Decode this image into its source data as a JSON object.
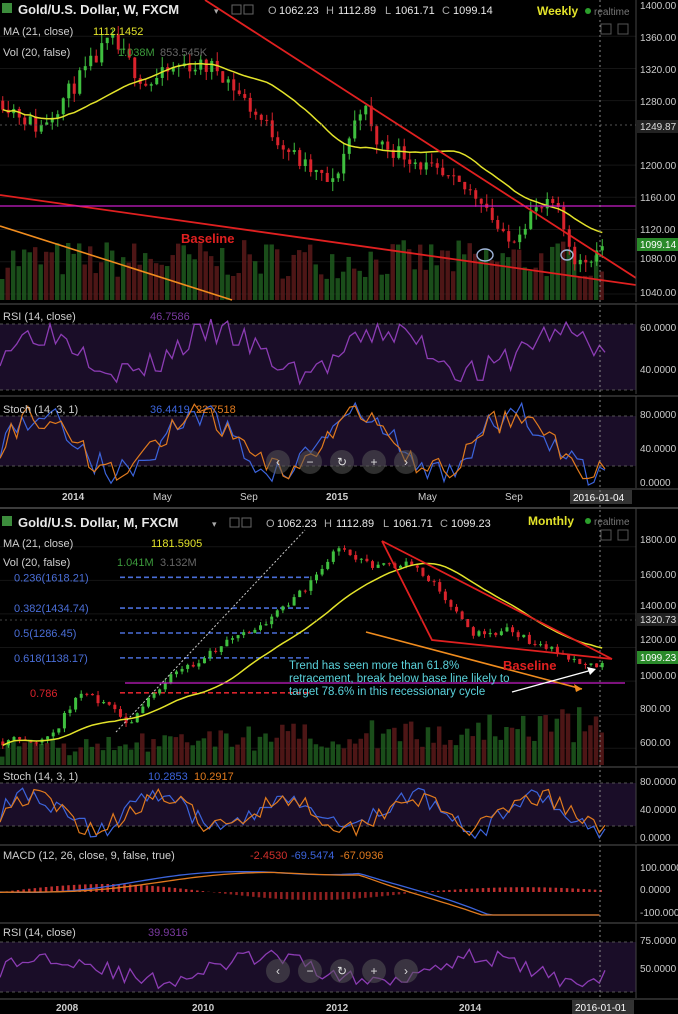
{
  "weekly": {
    "title": "Gold/U.S. Dollar, W, FXCM",
    "ohlc": {
      "o_label": "O",
      "o": "1062.23",
      "h_label": "H",
      "h": "1112.89",
      "l_label": "L",
      "l": "1061.71",
      "c_label": "C",
      "c": "1099.14"
    },
    "timeframe_label": "Weekly",
    "realtime_label": "realtime",
    "ma_label": "MA (21, close)",
    "ma_value": "1112.1452",
    "vol_label": "Vol (20, false)",
    "vol_values": [
      "1.038M",
      "853.545K"
    ],
    "rsi_label": "RSI (14, close)",
    "rsi_value": "46.7586",
    "stoch_label": "Stoch (14, 3, 1)",
    "stoch_values": [
      "36.4419",
      "22.7518"
    ],
    "baseline_label": "Baseline",
    "price_ticks": [
      "1400.00",
      "1360.00",
      "1320.00",
      "1280.00",
      "1249.87",
      "1200.00",
      "1160.00",
      "1120.00",
      "1099.14",
      "1080.00",
      "1040.00"
    ],
    "rsi_ticks": [
      "60.0000",
      "40.0000"
    ],
    "stoch_ticks": [
      "80.0000",
      "40.0000",
      "0.0000"
    ],
    "time_labels": [
      "2014",
      "May",
      "Sep",
      "2015",
      "May",
      "Sep"
    ],
    "date_badge": "2016-01-04"
  },
  "monthly": {
    "title": "Gold/U.S. Dollar, M, FXCM",
    "ohlc": {
      "o_label": "O",
      "o": "1062.23",
      "h_label": "H",
      "h": "1112.89",
      "l_label": "L",
      "l": "1061.71",
      "c_label": "C",
      "c": "1099.23"
    },
    "timeframe_label": "Monthly",
    "realtime_label": "realtime",
    "ma_label": "MA (21, close)",
    "ma_value": "1181.5905",
    "vol_label": "Vol (20, false)",
    "vol_values": [
      "1.041M",
      "3.132M"
    ],
    "fib_levels": [
      "0.236(1618.21)",
      "0.382(1434.74)",
      "0.5(1286.45)",
      "0.618(1138.17)",
      "0.786"
    ],
    "annotation_lines": [
      "Trend has seen more than 61.8%",
      "retracement, break below base line likely to",
      "target 78.6% in this recessionary cycle"
    ],
    "baseline_label": "Baseline",
    "price_ticks": [
      "1800.00",
      "1600.00",
      "1400.00",
      "1320.73",
      "1200.00",
      "1099.23",
      "1000.00",
      "800.00",
      "600.00"
    ],
    "stoch_label": "Stoch (14, 3, 1)",
    "stoch_values": [
      "10.2853",
      "10.2917"
    ],
    "stoch_ticks": [
      "80.0000",
      "40.0000",
      "0.0000"
    ],
    "macd_label": "MACD (12, 26, close, 9, false, true)",
    "macd_values": [
      "-2.4530",
      "-69.5474",
      "-67.0936"
    ],
    "macd_ticks": [
      "100.0000",
      "0.0000",
      "-100.0000"
    ],
    "rsi_label": "RSI (14, close)",
    "rsi_value": "39.9316",
    "rsi_ticks": [
      "75.0000",
      "50.0000"
    ],
    "time_labels": [
      "2008",
      "2010",
      "2012",
      "2014"
    ],
    "date_badge": "2016-01-01"
  },
  "nav_buttons": [
    "‹",
    "−",
    "↻",
    "+",
    "›"
  ],
  "colors": {
    "up": "#3fbf3f",
    "down": "#d9232c",
    "ma": "#e3e32a",
    "trendline": "#e02020",
    "orange": "#f08c1e",
    "magenta": "#c81ec8",
    "rsi": "#8c3cb4",
    "fib": "#4a6ed8",
    "stoch_k": "#3c64dc",
    "stoch_d": "#e07a1e",
    "panel_bg": "#000000",
    "osc_band": "#1e0f2e"
  },
  "chart_data": [
    {
      "type": "candlestick",
      "title": "Gold/U.S. Dollar, W, FXCM",
      "x_range": [
        "2013-11",
        "2016-01-04"
      ],
      "ylim": [
        1030,
        1405
      ],
      "tick_labels": [
        "1400.00",
        "1360.00",
        "1320.00",
        "1280.00",
        "1249.87",
        "1200.00",
        "1160.00",
        "1120.00",
        "1080.00",
        "1040.00"
      ],
      "last_close": 1099.14,
      "ma21_last": 1112.1452,
      "indicators": {
        "rsi14": 46.7586,
        "stoch_k": 36.4419,
        "stoch_d": 22.7518
      },
      "horizontal_levels": [
        1249.87,
        1145,
        1099.14
      ]
    },
    {
      "type": "candlestick",
      "title": "Gold/U.S. Dollar, M, FXCM",
      "x_range": [
        "2007-01",
        "2016-01-01"
      ],
      "ylim": [
        500,
        1900
      ],
      "tick_labels": [
        "1800.00",
        "1600.00",
        "1400.00",
        "1320.73",
        "1200.00",
        "1000.00",
        "800.00",
        "600.00"
      ],
      "last_close": 1099.23,
      "ma21_last": 1181.5905,
      "fibonacci": [
        {
          "label": "0.236(1618.21)",
          "price": 1618.21
        },
        {
          "label": "0.382(1434.74)",
          "price": 1434.74
        },
        {
          "label": "0.5(1286.45)",
          "price": 1286.45
        },
        {
          "label": "0.618(1138.17)",
          "price": 1138.17
        },
        {
          "label": "0.786",
          "price": 930
        }
      ],
      "indicators": {
        "stoch_k": 10.2853,
        "stoch_d": 10.2917,
        "macd": -2.453,
        "macd_signal": -69.5474,
        "macd_hist": -67.0936,
        "rsi14": 39.9316
      }
    }
  ]
}
